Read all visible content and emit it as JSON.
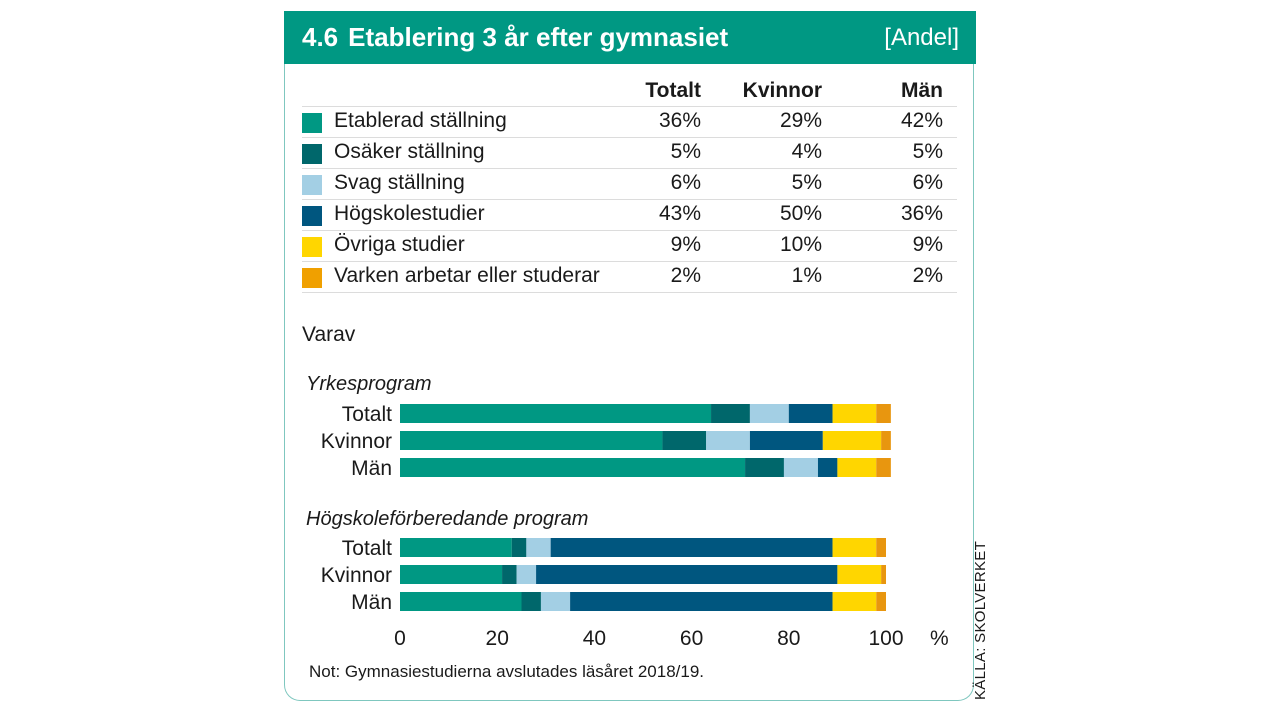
{
  "header": {
    "number": "4.6",
    "title": "Etablering 3 år efter gymnasiet",
    "unit": "[Andel]"
  },
  "table": {
    "columns": [
      "Totalt",
      "Kvinnor",
      "Män"
    ],
    "rows": [
      {
        "label": "Etablerad ställning",
        "color": "#009883",
        "values": [
          "36%",
          "29%",
          "42%"
        ]
      },
      {
        "label": "Osäker ställning",
        "color": "#00676b",
        "values": [
          "5%",
          "4%",
          "5%"
        ]
      },
      {
        "label": "Svag ställning",
        "color": "#a3cfe4",
        "values": [
          "6%",
          "5%",
          "6%"
        ]
      },
      {
        "label": "Högskolestudier",
        "color": "#00567f",
        "values": [
          "43%",
          "50%",
          "36%"
        ]
      },
      {
        "label": "Övriga studier",
        "color": "#ffd600",
        "values": [
          "9%",
          "10%",
          "9%"
        ]
      },
      {
        "label": "Varken arbetar eller studerar",
        "color": "#f0a000",
        "values": [
          "2%",
          "1%",
          "2%"
        ]
      }
    ]
  },
  "varav": "Varav",
  "chart_data": {
    "type": "bar",
    "orientation": "horizontal",
    "stacked": true,
    "xlim": [
      0,
      100
    ],
    "xticks": [
      "0",
      "20",
      "40",
      "60",
      "80",
      "100"
    ],
    "xunit": "%",
    "segment_names": [
      "Etablerad ställning",
      "Osäker ställning",
      "Svag ställning",
      "Högskolestudier",
      "Övriga studier",
      "Varken arbetar eller studerar"
    ],
    "colors": [
      "#009883",
      "#00676b",
      "#a3cfe4",
      "#00567f",
      "#ffd600",
      "#e8960f"
    ],
    "groups": [
      {
        "title": "Yrkesprogram",
        "bars": [
          {
            "label": "Totalt",
            "values": [
              64,
              8,
              8,
              9,
              9,
              3
            ]
          },
          {
            "label": "Kvinnor",
            "values": [
              54,
              9,
              9,
              15,
              12,
              2
            ]
          },
          {
            "label": "Män",
            "values": [
              71,
              8,
              7,
              4,
              8,
              3
            ]
          }
        ]
      },
      {
        "title": "Högskoleförberedande program",
        "bars": [
          {
            "label": "Totalt",
            "values": [
              23,
              3,
              5,
              58,
              9,
              2
            ]
          },
          {
            "label": "Kvinnor",
            "values": [
              21,
              3,
              4,
              62,
              9,
              1
            ]
          },
          {
            "label": "Män",
            "values": [
              25,
              4,
              6,
              54,
              9,
              2
            ]
          }
        ]
      }
    ]
  },
  "note": "Not: Gymnasiestudierna avslutades läsåret 2018/19.",
  "source": "KÄLLA: SKOLVERKET"
}
